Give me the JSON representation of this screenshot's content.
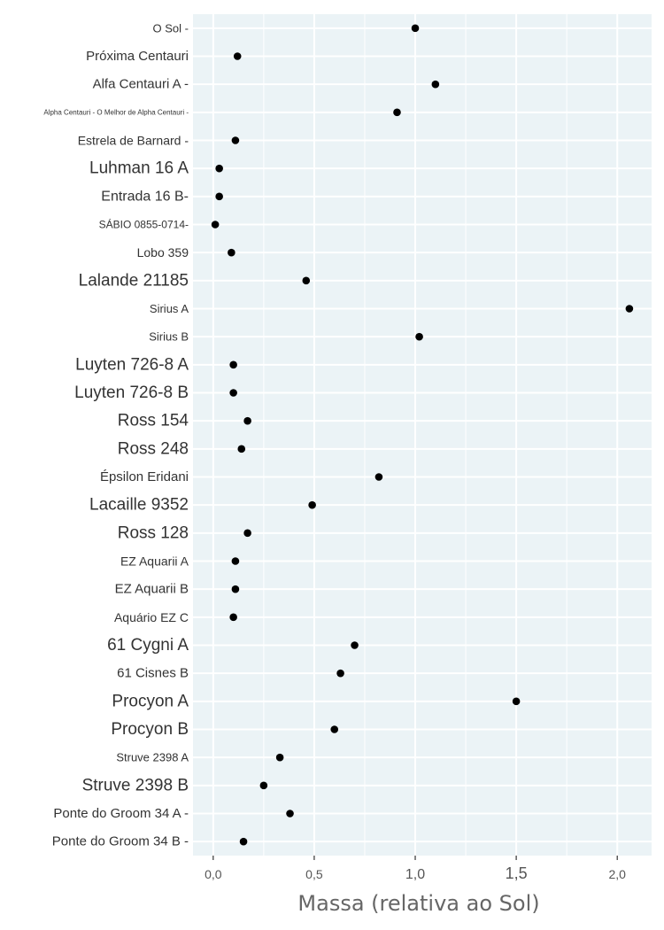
{
  "chart_data": {
    "type": "scatter",
    "title": "",
    "xlabel": "Massa (relativa ao Sol)",
    "ylabel": "",
    "xlim": [
      -0.1,
      2.17
    ],
    "xticks": [
      {
        "value": 0.0,
        "label": "0,0"
      },
      {
        "value": 0.5,
        "label": "0,5"
      },
      {
        "value": 1.0,
        "label": "1,0"
      },
      {
        "value": 1.5,
        "label": "1,5"
      },
      {
        "value": 2.0,
        "label": "2,0"
      }
    ],
    "grid": true,
    "background_color": "#ebf3f6",
    "grid_color": "#ffffff",
    "point_color": "#000000",
    "points": [
      {
        "label": "O Sol -",
        "x": 1.0
      },
      {
        "label": "Próxima Centauri",
        "x": 0.12
      },
      {
        "label": "Alfa Centauri A -",
        "x": 1.1
      },
      {
        "label": "Alpha Centauri - O Melhor de Alpha Centauri -",
        "x": 0.91
      },
      {
        "label": "Estrela de Barnard -",
        "x": 0.11
      },
      {
        "label": "Luhman 16 A",
        "x": 0.03
      },
      {
        "label": "Entrada 16 B-",
        "x": 0.03
      },
      {
        "label": "SÁBIO 0855-0714-",
        "x": 0.01
      },
      {
        "label": "Lobo 359",
        "x": 0.09
      },
      {
        "label": "Lalande 21185",
        "x": 0.46
      },
      {
        "label": "Sirius A",
        "x": 2.06
      },
      {
        "label": "Sirius B",
        "x": 1.02
      },
      {
        "label": "Luyten 726-8 A",
        "x": 0.1
      },
      {
        "label": "Luyten 726-8 B",
        "x": 0.1
      },
      {
        "label": "Ross 154",
        "x": 0.17
      },
      {
        "label": "Ross 248",
        "x": 0.14
      },
      {
        "label": "Épsilon Eridani",
        "x": 0.82
      },
      {
        "label": "Lacaille 9352",
        "x": 0.49
      },
      {
        "label": "Ross 128",
        "x": 0.17
      },
      {
        "label": "EZ Aquarii A",
        "x": 0.11
      },
      {
        "label": "EZ Aquarii B",
        "x": 0.11
      },
      {
        "label": "Aquário EZ C",
        "x": 0.1
      },
      {
        "label": "61 Cygni A",
        "x": 0.7
      },
      {
        "label": "61 Cisnes B",
        "x": 0.63
      },
      {
        "label": "Procyon A",
        "x": 1.5
      },
      {
        "label": "Procyon B",
        "x": 0.6
      },
      {
        "label": "Struve 2398 A",
        "x": 0.33
      },
      {
        "label": "Struve 2398 B",
        "x": 0.25
      },
      {
        "label": "Ponte do Groom 34 A -",
        "x": 0.38
      },
      {
        "label": "Ponte do Groom 34 B -",
        "x": 0.15
      }
    ]
  }
}
